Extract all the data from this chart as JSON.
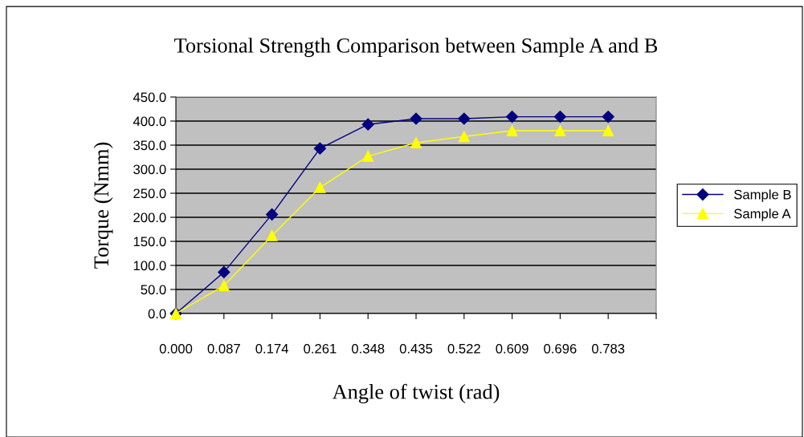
{
  "chart_data": {
    "type": "line",
    "title": "Torsional Strength Comparison between Sample A and B",
    "xlabel": "Angle of twist (rad)",
    "ylabel": "Torque (Nmm)",
    "x": [
      0.0,
      0.087,
      0.174,
      0.261,
      0.348,
      0.435,
      0.522,
      0.609,
      0.696,
      0.783
    ],
    "series": [
      {
        "name": "Sample B",
        "color": "#000080",
        "marker": "diamond",
        "values": [
          0,
          86,
          206,
          343,
          393,
          405,
          405,
          409,
          409,
          409
        ]
      },
      {
        "name": "Sample A",
        "color": "#ffff00",
        "marker": "triangle",
        "values": [
          0,
          58,
          162,
          262,
          327,
          355,
          368,
          380,
          380,
          380
        ]
      }
    ],
    "xlim": [
      0,
      0.87
    ],
    "xticks": [
      {
        "value": 0,
        "label": "0.000"
      },
      {
        "value": 0.087,
        "label": "0.087"
      },
      {
        "value": 0.174,
        "label": "0.174"
      },
      {
        "value": 0.261,
        "label": "0.261"
      },
      {
        "value": 0.348,
        "label": "0.348"
      },
      {
        "value": 0.435,
        "label": "0.435"
      },
      {
        "value": 0.522,
        "label": "0.522"
      },
      {
        "value": 0.609,
        "label": "0.609"
      },
      {
        "value": 0.696,
        "label": "0.696"
      },
      {
        "value": 0.783,
        "label": "0.783"
      },
      {
        "value": 0.87,
        "label": null
      }
    ],
    "ylim": [
      0,
      450
    ],
    "yticks": [
      {
        "value": 0,
        "label": "0.0"
      },
      {
        "value": 50,
        "label": "50.0"
      },
      {
        "value": 100,
        "label": "100.0"
      },
      {
        "value": 150,
        "label": "150.0"
      },
      {
        "value": 200,
        "label": "200.0"
      },
      {
        "value": 250,
        "label": "250.0"
      },
      {
        "value": 300,
        "label": "300.0"
      },
      {
        "value": 350,
        "label": "350.0"
      },
      {
        "value": 400,
        "label": "400.0"
      },
      {
        "value": 450,
        "label": "450.0"
      }
    ],
    "grid": "y",
    "legend": "right",
    "line_style": "solid"
  }
}
